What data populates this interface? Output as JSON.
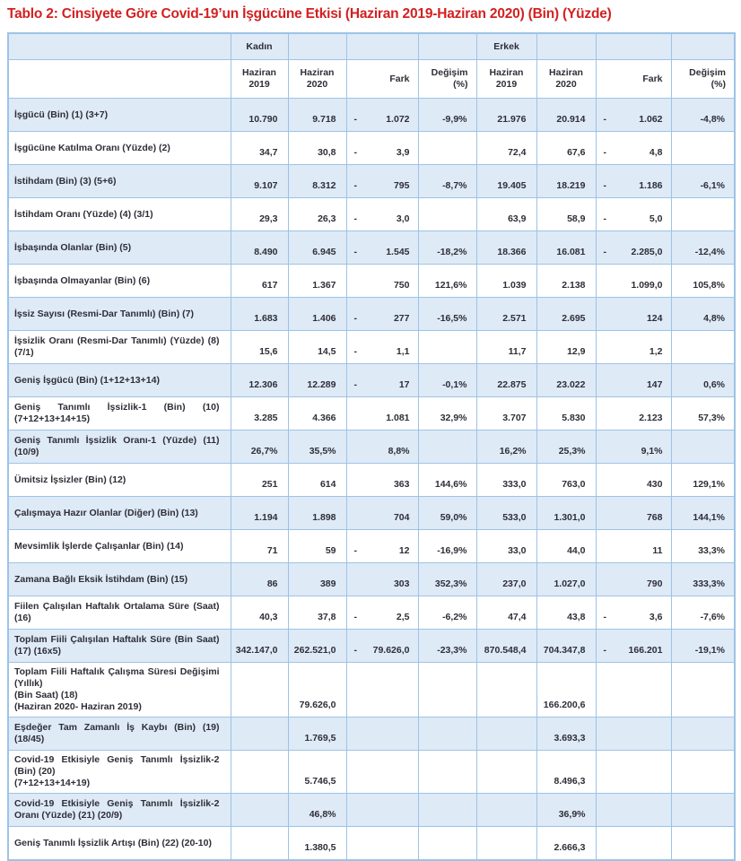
{
  "title": "Tablo 2: Cinsiyete Göre Covid-19’un İşgücüne Etkisi (Haziran 2019-Haziran 2020) (Bin) (Yüzde)",
  "colors": {
    "title_red": "#d42020",
    "row_shade_blue": "#deeaf6",
    "border_blue": "#9dc3e6",
    "text": "#2e2e38"
  },
  "table": {
    "group_headers": {
      "kadin": "Kadın",
      "erkek": "Erkek"
    },
    "sub_headers": {
      "h2019": "Haziran 2019",
      "h2020": "Haziran 2020",
      "fark": "Fark",
      "degisim": "Değişim (%)"
    },
    "rows": [
      {
        "label": "İşgücü (Bin) (1) (3+7)",
        "kadin": {
          "h2019": "10.790",
          "h2020": "9.718",
          "fark_sign": "-",
          "fark": "1.072",
          "degisim": "-9,9%"
        },
        "erkek": {
          "h2019": "21.976",
          "h2020": "20.914",
          "fark_sign": "-",
          "fark": "1.062",
          "degisim": "-4,8%"
        }
      },
      {
        "label": "İşgücüne Katılma Oranı (Yüzde) (2)",
        "kadin": {
          "h2019": "34,7",
          "h2020": "30,8",
          "fark_sign": "-",
          "fark": "3,9",
          "degisim": ""
        },
        "erkek": {
          "h2019": "72,4",
          "h2020": "67,6",
          "fark_sign": "-",
          "fark": "4,8",
          "degisim": ""
        }
      },
      {
        "label": "İstihdam (Bin) (3) (5+6)",
        "kadin": {
          "h2019": "9.107",
          "h2020": "8.312",
          "fark_sign": "-",
          "fark": "795",
          "degisim": "-8,7%"
        },
        "erkek": {
          "h2019": "19.405",
          "h2020": "18.219",
          "fark_sign": "-",
          "fark": "1.186",
          "degisim": "-6,1%"
        }
      },
      {
        "label": "İstihdam Oranı (Yüzde) (4) (3/1)",
        "kadin": {
          "h2019": "29,3",
          "h2020": "26,3",
          "fark_sign": "-",
          "fark": "3,0",
          "degisim": ""
        },
        "erkek": {
          "h2019": "63,9",
          "h2020": "58,9",
          "fark_sign": "-",
          "fark": "5,0",
          "degisim": ""
        }
      },
      {
        "label": "İşbaşında Olanlar (Bin) (5)",
        "kadin": {
          "h2019": "8.490",
          "h2020": "6.945",
          "fark_sign": "-",
          "fark": "1.545",
          "degisim": "-18,2%"
        },
        "erkek": {
          "h2019": "18.366",
          "h2020": "16.081",
          "fark_sign": "-",
          "fark": "2.285,0",
          "degisim": "-12,4%"
        }
      },
      {
        "label": "İşbaşında Olmayanlar (Bin) (6)",
        "kadin": {
          "h2019": "617",
          "h2020": "1.367",
          "fark_sign": "",
          "fark": "750",
          "degisim": "121,6%"
        },
        "erkek": {
          "h2019": "1.039",
          "h2020": "2.138",
          "fark_sign": "",
          "fark": "1.099,0",
          "degisim": "105,8%"
        }
      },
      {
        "label": "İşsiz Sayısı (Resmi-Dar Tanımlı) (Bin) (7)",
        "kadin": {
          "h2019": "1.683",
          "h2020": "1.406",
          "fark_sign": "-",
          "fark": "277",
          "degisim": "-16,5%"
        },
        "erkek": {
          "h2019": "2.571",
          "h2020": "2.695",
          "fark_sign": "",
          "fark": "124",
          "degisim": "4,8%"
        }
      },
      {
        "label": "İşsizlik Oranı (Resmi-Dar Tanımlı) (Yüzde) (8) (7/1)",
        "kadin": {
          "h2019": "15,6",
          "h2020": "14,5",
          "fark_sign": "-",
          "fark": "1,1",
          "degisim": ""
        },
        "erkek": {
          "h2019": "11,7",
          "h2020": "12,9",
          "fark_sign": "",
          "fark": "1,2",
          "degisim": ""
        }
      },
      {
        "label": "Geniş İşgücü (Bin) (1+12+13+14)",
        "kadin": {
          "h2019": "12.306",
          "h2020": "12.289",
          "fark_sign": "-",
          "fark": "17",
          "degisim": "-0,1%"
        },
        "erkek": {
          "h2019": "22.875",
          "h2020": "23.022",
          "fark_sign": "",
          "fark": "147",
          "degisim": "0,6%"
        }
      },
      {
        "label": "Geniş Tanımlı İşsizlik-1 (Bin) (10) (7+12+13+14+15)",
        "kadin": {
          "h2019": "3.285",
          "h2020": "4.366",
          "fark_sign": "",
          "fark": "1.081",
          "degisim": "32,9%"
        },
        "erkek": {
          "h2019": "3.707",
          "h2020": "5.830",
          "fark_sign": "",
          "fark": "2.123",
          "degisim": "57,3%"
        }
      },
      {
        "label": "Geniş Tanımlı İşsizlik Oranı-1 (Yüzde) (11) (10/9)",
        "kadin": {
          "h2019": "26,7%",
          "h2020": "35,5%",
          "fark_sign": "",
          "fark": "8,8%",
          "degisim": ""
        },
        "erkek": {
          "h2019": "16,2%",
          "h2020": "25,3%",
          "fark_sign": "",
          "fark": "9,1%",
          "degisim": ""
        }
      },
      {
        "label": "Ümitsiz İşsizler (Bin) (12)",
        "kadin": {
          "h2019": "251",
          "h2020": "614",
          "fark_sign": "",
          "fark": "363",
          "degisim": "144,6%"
        },
        "erkek": {
          "h2019": "333,0",
          "h2020": "763,0",
          "fark_sign": "",
          "fark": "430",
          "degisim": "129,1%"
        }
      },
      {
        "label": "Çalışmaya Hazır Olanlar (Diğer) (Bin) (13)",
        "kadin": {
          "h2019": "1.194",
          "h2020": "1.898",
          "fark_sign": "",
          "fark": "704",
          "degisim": "59,0%"
        },
        "erkek": {
          "h2019": "533,0",
          "h2020": "1.301,0",
          "fark_sign": "",
          "fark": "768",
          "degisim": "144,1%"
        }
      },
      {
        "label": "Mevsimlik İşlerde Çalışanlar (Bin) (14)",
        "kadin": {
          "h2019": "71",
          "h2020": "59",
          "fark_sign": "-",
          "fark": "12",
          "degisim": "-16,9%"
        },
        "erkek": {
          "h2019": "33,0",
          "h2020": "44,0",
          "fark_sign": "",
          "fark": "11",
          "degisim": "33,3%"
        }
      },
      {
        "label": "Zamana Bağlı Eksik İstihdam (Bin) (15)",
        "kadin": {
          "h2019": "86",
          "h2020": "389",
          "fark_sign": "",
          "fark": "303",
          "degisim": "352,3%"
        },
        "erkek": {
          "h2019": "237,0",
          "h2020": "1.027,0",
          "fark_sign": "",
          "fark": "790",
          "degisim": "333,3%"
        }
      },
      {
        "label": "Fiilen Çalışılan Haftalık Ortalama Süre (Saat) (16)",
        "kadin": {
          "h2019": "40,3",
          "h2020": "37,8",
          "fark_sign": "-",
          "fark": "2,5",
          "degisim": "-6,2%"
        },
        "erkek": {
          "h2019": "47,4",
          "h2020": "43,8",
          "fark_sign": "-",
          "fark": "3,6",
          "degisim": "-7,6%"
        }
      },
      {
        "label": "Toplam Fiili Çalışılan Haftalık Süre (Bin Saat) (17) (16x5)",
        "kadin": {
          "h2019": "342.147,0",
          "h2020": "262.521,0",
          "fark_sign": "-",
          "fark": "79.626,0",
          "degisim": "-23,3%"
        },
        "erkek": {
          "h2019": "870.548,4",
          "h2020": "704.347,8",
          "fark_sign": "-",
          "fark": "166.201",
          "degisim": "-19,1%"
        }
      },
      {
        "label": "Toplam Fiili Haftalık Çalışma Süresi Değişimi (Yıllık)\n(Bin Saat) (18)\n(Haziran 2020- Haziran 2019)",
        "kadin": {
          "h2019": "",
          "h2020": "79.626,0",
          "fark_sign": "",
          "fark": "",
          "degisim": ""
        },
        "erkek": {
          "h2019": "",
          "h2020": "166.200,6",
          "fark_sign": "",
          "fark": "",
          "degisim": ""
        }
      },
      {
        "label": "Eşdeğer Tam Zamanlı İş Kaybı (Bin) (19) (18/45)",
        "kadin": {
          "h2019": "",
          "h2020": "1.769,5",
          "fark_sign": "",
          "fark": "",
          "degisim": ""
        },
        "erkek": {
          "h2019": "",
          "h2020": "3.693,3",
          "fark_sign": "",
          "fark": "",
          "degisim": ""
        }
      },
      {
        "label": "Covid-19 Etkisiyle Geniş Tanımlı İşsizlik-2 (Bin) (20)\n(7+12+13+14+19)",
        "kadin": {
          "h2019": "",
          "h2020": "5.746,5",
          "fark_sign": "",
          "fark": "",
          "degisim": ""
        },
        "erkek": {
          "h2019": "",
          "h2020": "8.496,3",
          "fark_sign": "",
          "fark": "",
          "degisim": ""
        }
      },
      {
        "label": "Covid-19 Etkisiyle Geniş Tanımlı İşsizlik-2 Oranı (Yüzde) (21) (20/9)",
        "kadin": {
          "h2019": "",
          "h2020": "46,8%",
          "fark_sign": "",
          "fark": "",
          "degisim": ""
        },
        "erkek": {
          "h2019": "",
          "h2020": "36,9%",
          "fark_sign": "",
          "fark": "",
          "degisim": ""
        }
      },
      {
        "label": "Geniş Tanımlı İşsizlik Artışı (Bin) (22) (20-10)",
        "kadin": {
          "h2019": "",
          "h2020": "1.380,5",
          "fark_sign": "",
          "fark": "",
          "degisim": ""
        },
        "erkek": {
          "h2019": "",
          "h2020": "2.666,3",
          "fark_sign": "",
          "fark": "",
          "degisim": ""
        }
      }
    ]
  }
}
